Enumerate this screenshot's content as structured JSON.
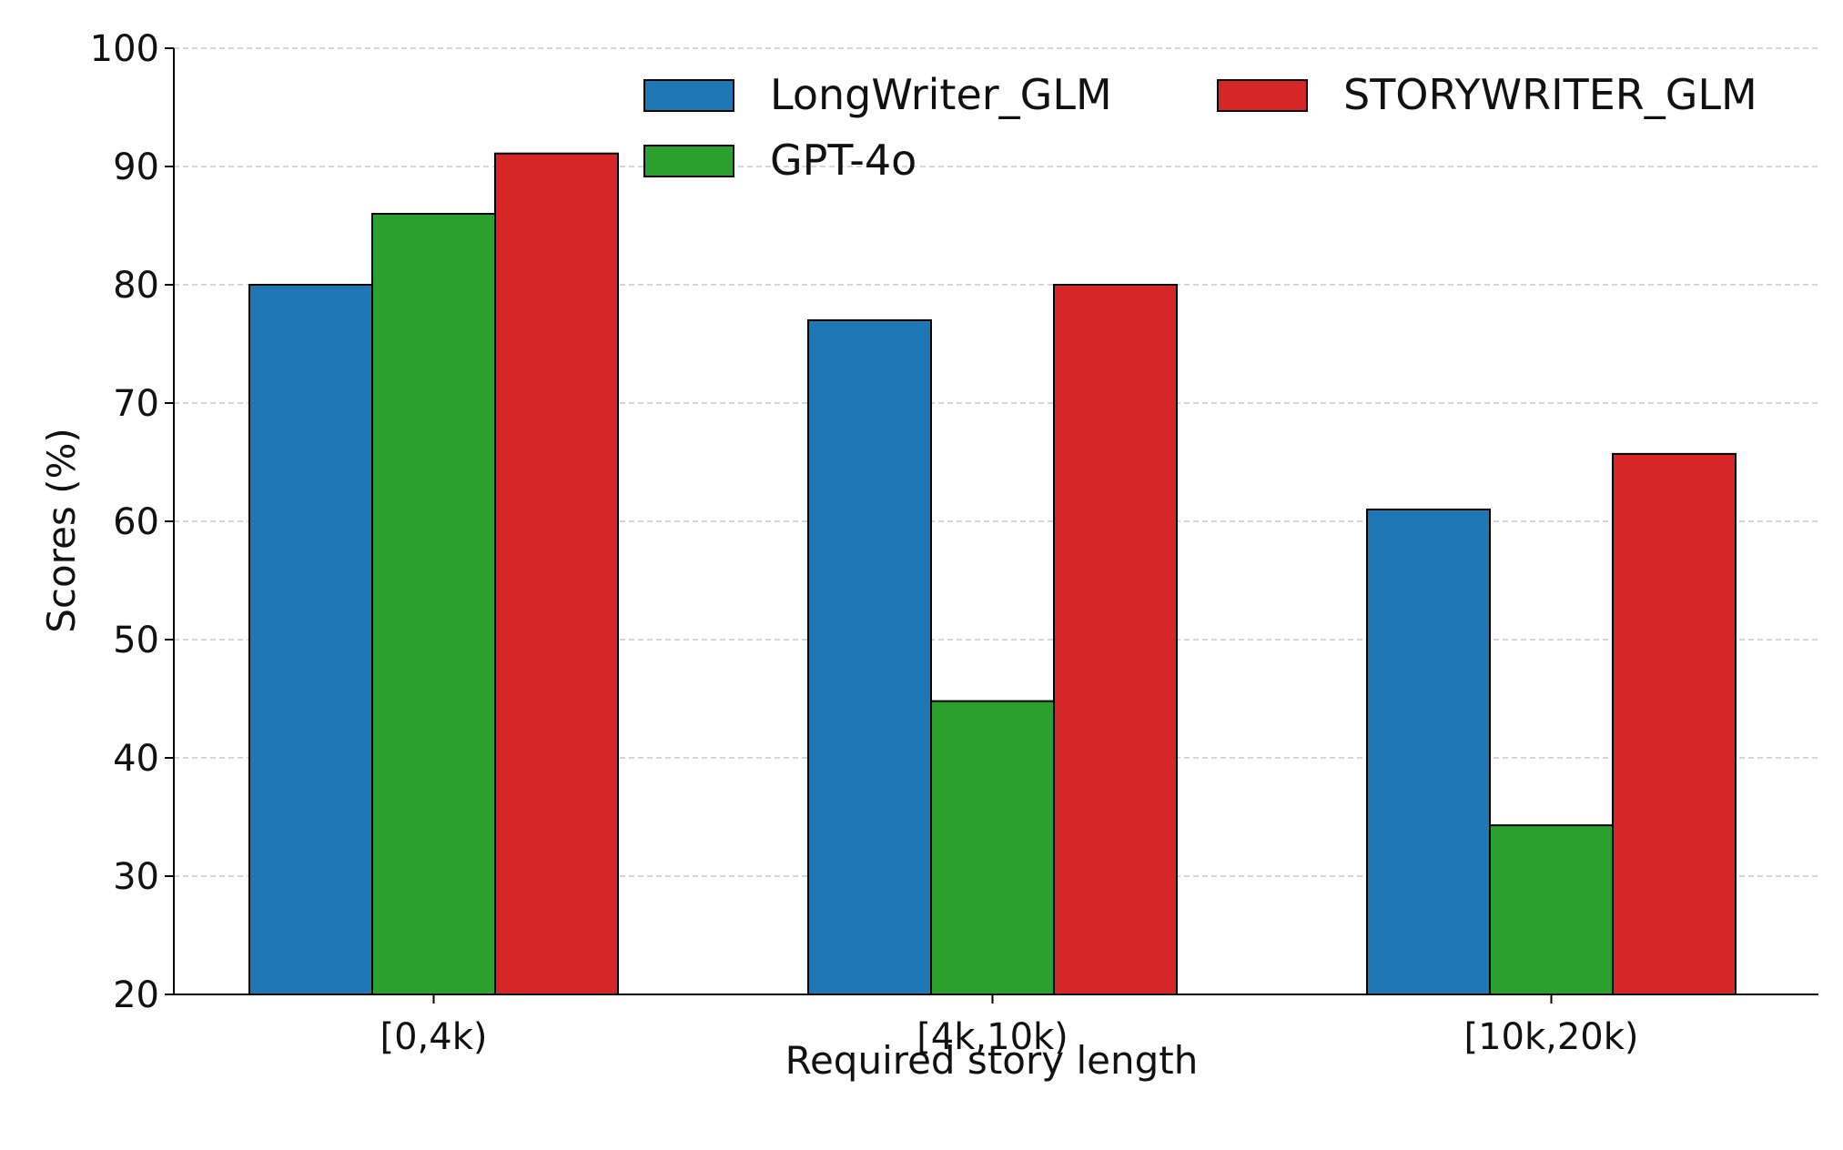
{
  "chart_data": {
    "type": "bar",
    "title": "",
    "xlabel": "Required story length",
    "ylabel": "Scores (%)",
    "categories": [
      "[0,4k)",
      "[4k,10k)",
      "[10k,20k)"
    ],
    "series": [
      {
        "name": "LongWriter_GLM",
        "color": "#1f77b4",
        "values": [
          80,
          77,
          61
        ]
      },
      {
        "name": "GPT-4o",
        "color": "#2ca02c",
        "values": [
          86,
          44.8,
          34.3
        ]
      },
      {
        "name": "STORYWRITER_GLM",
        "color": "#d62728",
        "values": [
          91.1,
          80,
          65.7
        ]
      }
    ],
    "ylim": [
      20,
      100
    ],
    "yticks": [
      "20",
      "30",
      "40",
      "50",
      "60",
      "70",
      "80",
      "90",
      "100"
    ],
    "grid": "horizontal dashed",
    "legend_position": "top-right"
  }
}
